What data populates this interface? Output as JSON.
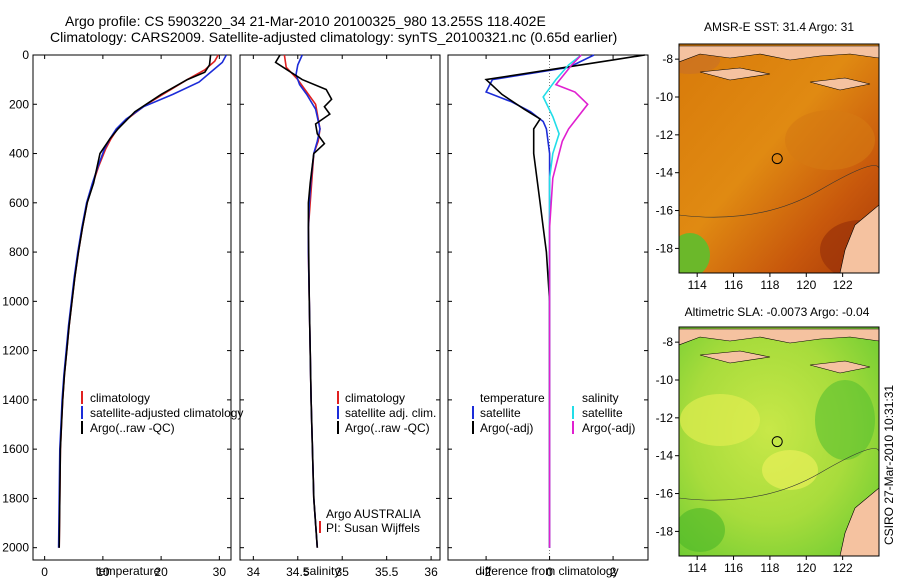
{
  "header": {
    "line1": "Argo profile: CS 5903220_34 21-Mar-2010 20100325_980 13.255S 118.402E",
    "line2": "Climatology: CARS2009. Satellite-adjusted climatology: synTS_20100321.nc (0.65d earlier)"
  },
  "side_label": "CSIRO 27-Mar-2010 10:31:31",
  "colors": {
    "climatology": "#e02020",
    "satellite": "#1c2cd8",
    "argo": "#000000",
    "sal_satellite": "#22dde8",
    "sal_argo": "#e020d0"
  },
  "chart_data": [
    {
      "type": "line",
      "id": "temperature",
      "xlabel": "temperature",
      "xlim": [
        -2,
        32
      ],
      "xticks": [
        0,
        10,
        20,
        30
      ],
      "ylim": [
        2050,
        0
      ],
      "yticks": [
        0,
        200,
        400,
        600,
        800,
        1000,
        1200,
        1400,
        1600,
        1800,
        2000
      ],
      "legend": [
        "climatology",
        "satellite-adjusted climatology",
        "Argo(..raw -QC)"
      ],
      "series": [
        {
          "name": "climatology",
          "color": "#e02020",
          "x": [
            29.8,
            29.2,
            27.5,
            24.5,
            21,
            17.5,
            14.2,
            12.5,
            11.4,
            10.5,
            9.3,
            8.3,
            7.3,
            6.5,
            5.8,
            5.2,
            4.7,
            4.2,
            3.8,
            3.4,
            3.1,
            2.9,
            2.7,
            2.5
          ],
          "y": [
            0,
            25,
            60,
            100,
            150,
            200,
            260,
            300,
            340,
            380,
            450,
            520,
            600,
            700,
            800,
            900,
            1000,
            1100,
            1200,
            1300,
            1400,
            1500,
            1600,
            2000
          ]
        },
        {
          "name": "satellite-adjusted climatology",
          "color": "#1c2cd8",
          "x": [
            31.2,
            30.5,
            28.5,
            26.5,
            22,
            17,
            14,
            12.3,
            11.2,
            10.3,
            9.2,
            8.2,
            7.2,
            6.4,
            5.7,
            5.1,
            4.6,
            4.1,
            3.7,
            3.3,
            3.0,
            2.8,
            2.6,
            2.4
          ],
          "y": [
            0,
            30,
            70,
            110,
            160,
            210,
            260,
            300,
            340,
            380,
            450,
            520,
            600,
            700,
            800,
            900,
            1000,
            1100,
            1200,
            1300,
            1400,
            1500,
            1600,
            2000
          ]
        },
        {
          "name": "Argo(..raw -QC)",
          "color": "#000000",
          "x": [
            28.5,
            28.3,
            27.5,
            24.5,
            20,
            15.5,
            12.6,
            11.2,
            9.5,
            8.4,
            7.3,
            6.5,
            5.8,
            5.2,
            4.7,
            4.2,
            3.8,
            3.4,
            3.1,
            2.9,
            2.7,
            2.5
          ],
          "y": [
            0,
            40,
            70,
            100,
            160,
            230,
            300,
            340,
            400,
            520,
            600,
            700,
            800,
            900,
            1000,
            1100,
            1200,
            1300,
            1400,
            1500,
            1600,
            2000
          ]
        }
      ]
    },
    {
      "type": "line",
      "id": "salinity",
      "xlabel": "salinity",
      "xlim": [
        33.85,
        36.1
      ],
      "xticks": [
        34,
        34.5,
        35,
        35.5,
        36
      ],
      "xticklabels": [
        "34",
        "34.5",
        "35",
        "35.5",
        "36"
      ],
      "ylim": [
        2050,
        0
      ],
      "legend": [
        "climatology",
        "satellite adj. clim.",
        "Argo(..raw -QC)"
      ],
      "note": [
        "Argo AUSTRALIA",
        "PI: Susan Wijffels"
      ],
      "series": [
        {
          "name": "climatology",
          "color": "#e02020",
          "x": [
            34.35,
            34.37,
            34.5,
            34.6,
            34.7,
            34.75,
            34.73,
            34.68,
            34.66,
            34.64,
            34.62,
            34.62,
            34.63,
            34.65,
            34.68,
            34.72
          ],
          "y": [
            0,
            50,
            100,
            150,
            200,
            300,
            350,
            400,
            500,
            600,
            700,
            800,
            1000,
            1400,
            1800,
            2000
          ]
        },
        {
          "name": "satellite adj. clim.",
          "color": "#1c2cd8",
          "x": [
            34.55,
            34.5,
            34.48,
            34.52,
            34.6,
            34.7,
            34.75,
            34.72,
            34.68,
            34.65,
            34.63,
            34.62,
            34.62,
            34.63,
            34.65,
            34.68,
            34.72
          ],
          "y": [
            0,
            40,
            80,
            120,
            160,
            220,
            300,
            350,
            400,
            500,
            600,
            700,
            800,
            1000,
            1400,
            1800,
            2000
          ]
        },
        {
          "name": "Argo(..raw -QC)",
          "color": "#000000",
          "x": [
            34.3,
            34.25,
            34.38,
            34.55,
            34.82,
            34.88,
            34.8,
            34.86,
            34.7,
            34.72,
            34.8,
            34.68,
            34.66,
            34.64,
            34.62,
            34.62,
            34.63,
            34.65,
            34.68,
            34.72
          ],
          "y": [
            0,
            30,
            60,
            100,
            140,
            180,
            210,
            240,
            280,
            320,
            360,
            400,
            460,
            520,
            600,
            700,
            1000,
            1400,
            1800,
            2000
          ]
        }
      ]
    },
    {
      "type": "line",
      "id": "difference",
      "xlabel": "difference from climatology",
      "xlim": [
        -3.2,
        3.1
      ],
      "xticks": [
        -2,
        0,
        2
      ],
      "ylim": [
        2050,
        0
      ],
      "legend_t_title": "temperature",
      "legend_s_title": "salinity",
      "legend_t": [
        "satellite",
        "Argo(-adj)"
      ],
      "legend_s": [
        "satellite",
        "Argo(-adj)"
      ],
      "series": [
        {
          "name": "temperature satellite",
          "color": "#1c2cd8",
          "x": [
            1.4,
            0.6,
            -1.8,
            -2.0,
            -1.2,
            -0.6,
            -0.2,
            -0.1,
            0,
            0,
            0,
            0
          ],
          "y": [
            0,
            50,
            100,
            150,
            190,
            230,
            270,
            300,
            400,
            600,
            1000,
            2000
          ]
        },
        {
          "name": "temperature Argo(-adj)",
          "color": "#000000",
          "x": [
            3.0,
            2.0,
            0.5,
            -2.0,
            -1.5,
            -0.8,
            -0.3,
            -0.5,
            -0.5,
            -0.4,
            -0.3,
            -0.2,
            -0.1,
            0,
            0
          ],
          "y": [
            0,
            20,
            50,
            100,
            160,
            220,
            260,
            300,
            400,
            500,
            600,
            700,
            800,
            1000,
            2000
          ]
        },
        {
          "name": "salinity satellite",
          "color": "#22dde8",
          "x": [
            1.0,
            0.6,
            0.2,
            -0.2,
            0.1,
            0.3,
            0.1,
            0,
            0,
            0
          ],
          "y": [
            0,
            40,
            100,
            170,
            250,
            320,
            400,
            500,
            800,
            2000
          ]
        },
        {
          "name": "salinity Argo(-adj)",
          "color": "#e020d0",
          "x": [
            1.0,
            0.7,
            0.2,
            0.8,
            1.2,
            0.6,
            0.4,
            0.3,
            0.1,
            0,
            0
          ],
          "y": [
            0,
            40,
            120,
            150,
            200,
            300,
            350,
            400,
            500,
            700,
            2000
          ]
        }
      ]
    },
    {
      "type": "heatmap",
      "id": "map_sst",
      "title": "AMSR-E SST: 31.4  Argo: 31",
      "xlim": [
        113,
        124
      ],
      "ylim": [
        -19.3,
        -7.2
      ],
      "xticks": [
        114,
        116,
        118,
        120,
        122
      ],
      "yticks": [
        -8,
        -10,
        -12,
        -14,
        -16,
        -18
      ],
      "marker": {
        "lon": 118.402,
        "lat": -13.255
      }
    },
    {
      "type": "heatmap",
      "id": "map_sla",
      "title": "Altimetric SLA: -0.0073  Argo: -0.04",
      "xlim": [
        113,
        124
      ],
      "ylim": [
        -19.3,
        -7.2
      ],
      "xticks": [
        114,
        116,
        118,
        120,
        122
      ],
      "yticks": [
        -8,
        -10,
        -12,
        -14,
        -16,
        -18
      ],
      "marker": {
        "lon": 118.402,
        "lat": -13.255
      }
    }
  ]
}
